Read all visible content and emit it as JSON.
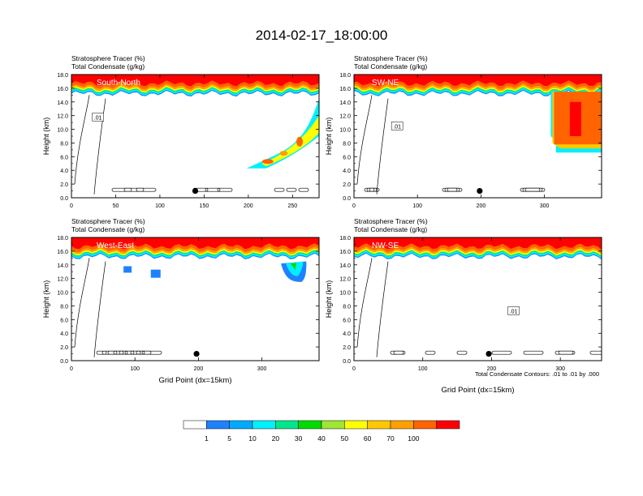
{
  "figure": {
    "title": "2014-02-17_18:00:00",
    "contour_note": "Total Condensate Contours: .01 to .01 by .000",
    "contour_label": ".01"
  },
  "panel_text": {
    "var1": "Stratosphere Tracer   (%)",
    "var2": "Total Condensate   (g/kg)",
    "ylabel": "Height (km)",
    "xlabel": "Grid Point (dx=15km)"
  },
  "colorbar": {
    "colors": [
      "#ffffff",
      "#1e82ff",
      "#00aaff",
      "#00f0ff",
      "#00e68c",
      "#00dc00",
      "#a0e632",
      "#ffff00",
      "#ffc800",
      "#ffa000",
      "#ff6400",
      "#ff0000"
    ],
    "labels": [
      "1",
      "5",
      "10",
      "20",
      "30",
      "40",
      "50",
      "60",
      "70",
      "100"
    ]
  },
  "chart_data": [
    {
      "type": "heatmap",
      "name": "South-North",
      "title": "South-North",
      "ylim": [
        0,
        18
      ],
      "xlim": [
        0,
        280
      ],
      "yticks": [
        "0.0",
        "2.0",
        "4.0",
        "6.0",
        "8.0",
        "10.0",
        "12.0",
        "14.0",
        "16.0",
        "18.0"
      ],
      "xticks": [
        0,
        50,
        100,
        150,
        200,
        250
      ],
      "tracer_band_top_km": 18,
      "tracer_band_bottom_km": 15.5,
      "marker": {
        "x": 140,
        "y_km": 1.0
      },
      "contour_label_at": {
        "x": 30,
        "y_km": 11.8
      },
      "features": [
        {
          "kind": "intrusion",
          "x": [
            220,
            280
          ],
          "y_km": [
            4.5,
            14.5
          ],
          "max_percent": 100
        }
      ]
    },
    {
      "type": "heatmap",
      "name": "SW-NE",
      "title": "SW-NE",
      "ylim": [
        0,
        18
      ],
      "xlim": [
        0,
        390
      ],
      "yticks": [
        "0.0",
        "2.0",
        "4.0",
        "6.0",
        "8.0",
        "10.0",
        "12.0",
        "14.0",
        "16.0",
        "18.0"
      ],
      "xticks": [
        0,
        100,
        200,
        300
      ],
      "tracer_band_top_km": 18,
      "tracer_band_bottom_km": 15.5,
      "marker": {
        "x": 198,
        "y_km": 1.0
      },
      "contour_label_at": {
        "x": 68,
        "y_km": 10.5
      },
      "features": [
        {
          "kind": "fold",
          "x": [
            310,
            390
          ],
          "y_km": [
            6.8,
            15.5
          ],
          "max_percent": 100
        }
      ]
    },
    {
      "type": "heatmap",
      "name": "West-East",
      "title": "West-East",
      "ylim": [
        0,
        18
      ],
      "xlim": [
        0,
        390
      ],
      "yticks": [
        "0.0",
        "2.0",
        "4.0",
        "6.0",
        "8.0",
        "10.0",
        "12.0",
        "14.0",
        "16.0",
        "18.0"
      ],
      "xticks": [
        0,
        100,
        200,
        300
      ],
      "tracer_band_top_km": 18,
      "tracer_band_bottom_km": 15.5,
      "marker": {
        "x": 197,
        "y_km": 1.0
      },
      "features": [
        {
          "kind": "blob",
          "x": [
            330,
            370
          ],
          "y_km": [
            11.5,
            14.5
          ],
          "max_percent": 30
        }
      ]
    },
    {
      "type": "heatmap",
      "name": "NW-SE",
      "title": "NW-SE",
      "ylim": [
        0,
        18
      ],
      "xlim": [
        0,
        360
      ],
      "yticks": [
        "0.0",
        "2.0",
        "4.0",
        "6.0",
        "8.0",
        "10.0",
        "12.0",
        "14.0",
        "16.0",
        "18.0"
      ],
      "xticks": [
        0,
        100,
        200,
        300
      ],
      "tracer_band_top_km": 18,
      "tracer_band_bottom_km": 15.5,
      "marker": {
        "x": 196,
        "y_km": 1.0
      },
      "contour_label_at": {
        "x": 232,
        "y_km": 7.3
      },
      "features": []
    }
  ]
}
